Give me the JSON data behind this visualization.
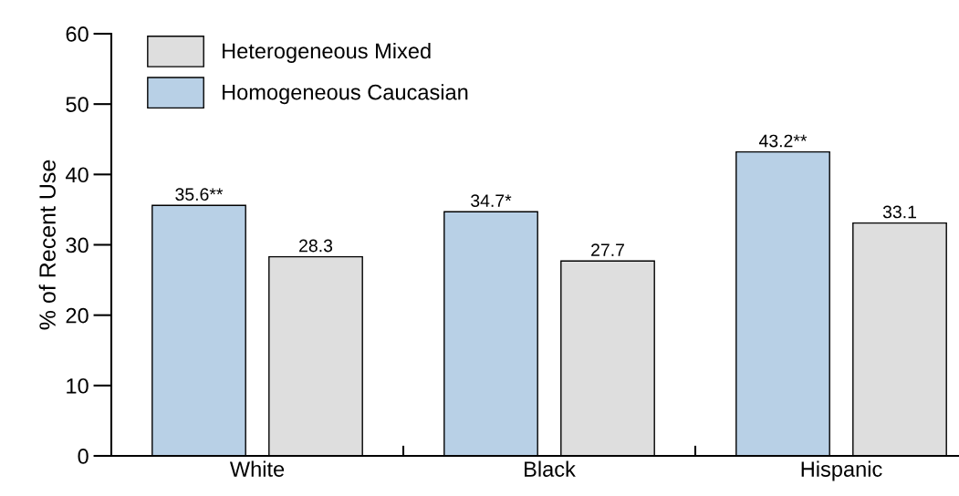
{
  "chart_data": {
    "type": "bar",
    "ylabel": "% of Recent Use",
    "categories": [
      "White",
      "Black",
      "Hispanic"
    ],
    "series": [
      {
        "name": "Homogeneous Caucasian",
        "color": "#b8d0e6",
        "values": [
          35.6,
          34.7,
          43.2
        ],
        "value_labels": [
          "35.6**",
          "34.7*",
          "43.2**"
        ]
      },
      {
        "name": "Heterogeneous Mixed",
        "color": "#dedede",
        "values": [
          28.3,
          27.7,
          33.1
        ],
        "value_labels": [
          "28.3",
          "27.7",
          "33.1"
        ]
      }
    ],
    "ylim": [
      0,
      60
    ],
    "yticks": [
      0,
      10,
      20,
      30,
      40,
      50,
      60
    ],
    "grid": false,
    "legend": "top left"
  }
}
